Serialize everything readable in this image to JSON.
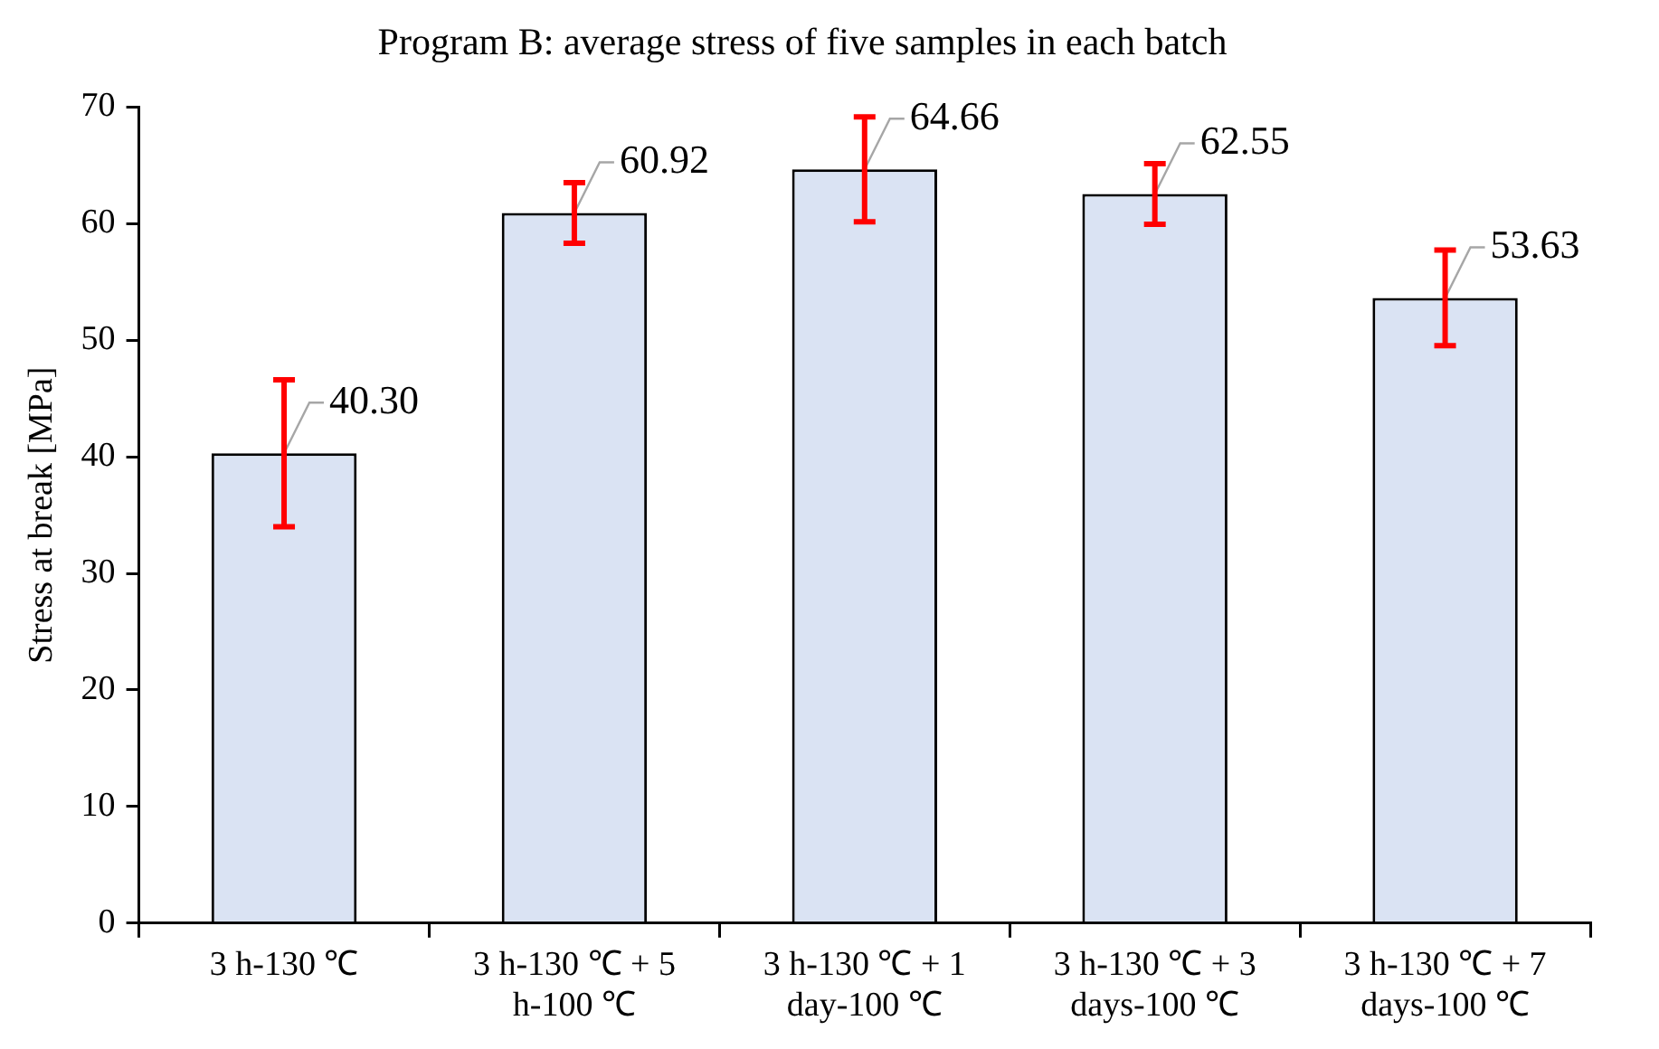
{
  "chart_data": {
    "type": "bar",
    "title": "Program B: average stress of five samples in each batch",
    "ylabel": "Stress at break [MPa]",
    "categories": [
      "3 h-130 ℃",
      "3 h-130 ℃ + 5 h-100 ℃",
      "3 h-130 ℃ + 1 day-100 ℃",
      "3 h-130 ℃ + 3 days-100 ℃",
      "3 h-130 ℃ + 7 days-100 ℃"
    ],
    "values": [
      40.3,
      60.92,
      64.66,
      62.55,
      53.63
    ],
    "errors": [
      6.3,
      2.6,
      4.5,
      2.6,
      4.1
    ],
    "value_labels": [
      "40.30",
      "60.92",
      "64.66",
      "62.55",
      "53.63"
    ],
    "color": "#dae3f3",
    "grid": false,
    "legend": false,
    "ylim": [
      0,
      70
    ],
    "yticks": [
      0,
      10,
      20,
      30,
      40,
      50,
      60,
      70
    ]
  }
}
